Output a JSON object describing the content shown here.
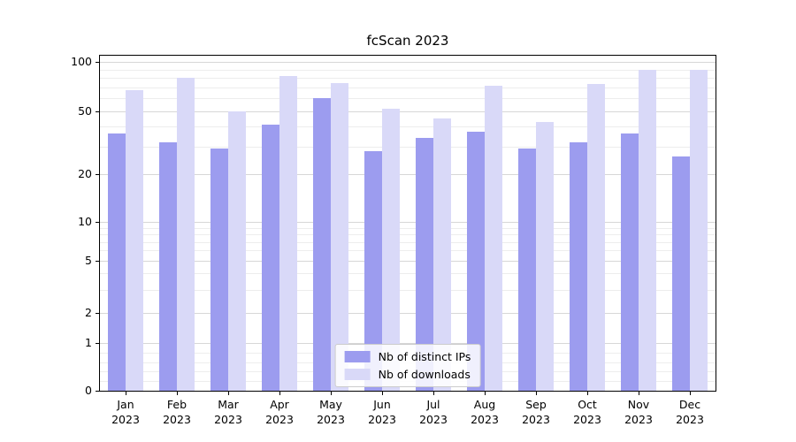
{
  "title": "fcScan 2023",
  "chart_data": {
    "type": "bar",
    "title": "fcScan 2023",
    "yscale": "symlog",
    "grid": true,
    "legend_position": "lower center",
    "categories": [
      "Jan",
      "Feb",
      "Mar",
      "Apr",
      "May",
      "Jun",
      "Jul",
      "Aug",
      "Sep",
      "Oct",
      "Nov",
      "Dec"
    ],
    "year_label": "2023",
    "y_ticks": [
      0,
      1,
      2,
      5,
      10,
      20,
      50,
      100
    ],
    "ylim": [
      0,
      110
    ],
    "series": [
      {
        "name": "Nb of distinct IPs",
        "color": "#9c9cef",
        "values": [
          36,
          32,
          29,
          41,
          60,
          28,
          34,
          37,
          29,
          32,
          36,
          26
        ]
      },
      {
        "name": "Nb of downloads",
        "color": "#d9d9f8",
        "values": [
          67,
          80,
          50,
          82,
          74,
          52,
          45,
          72,
          43,
          73,
          90,
          90
        ]
      }
    ]
  }
}
